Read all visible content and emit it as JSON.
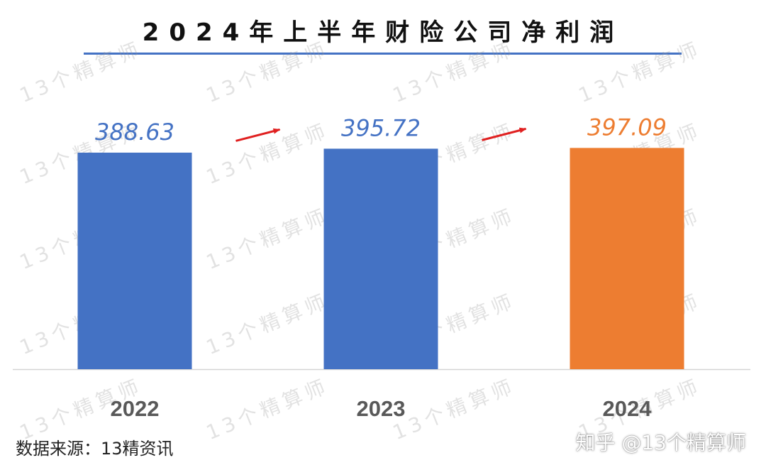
{
  "chart_data": {
    "type": "bar",
    "title": "2024年上半年财险公司净利润",
    "categories": [
      "2022",
      "2023",
      "2024"
    ],
    "values": [
      388.63,
      395.72,
      397.09
    ],
    "value_labels": [
      "388.63",
      "395.72",
      "397.09"
    ],
    "bar_colors": [
      "#4472c4",
      "#4472c4",
      "#ed7d31"
    ],
    "label_colors": [
      "#4472c4",
      "#4472c4",
      "#ed7d31"
    ],
    "trend_arrow_color": "#e02020",
    "xlabel": "",
    "ylabel": "",
    "grid": false,
    "legend": "none"
  },
  "source_text": "数据来源：13精资讯",
  "credit_text": "知乎 @13个精算师",
  "watermark_text": "13个精算师"
}
